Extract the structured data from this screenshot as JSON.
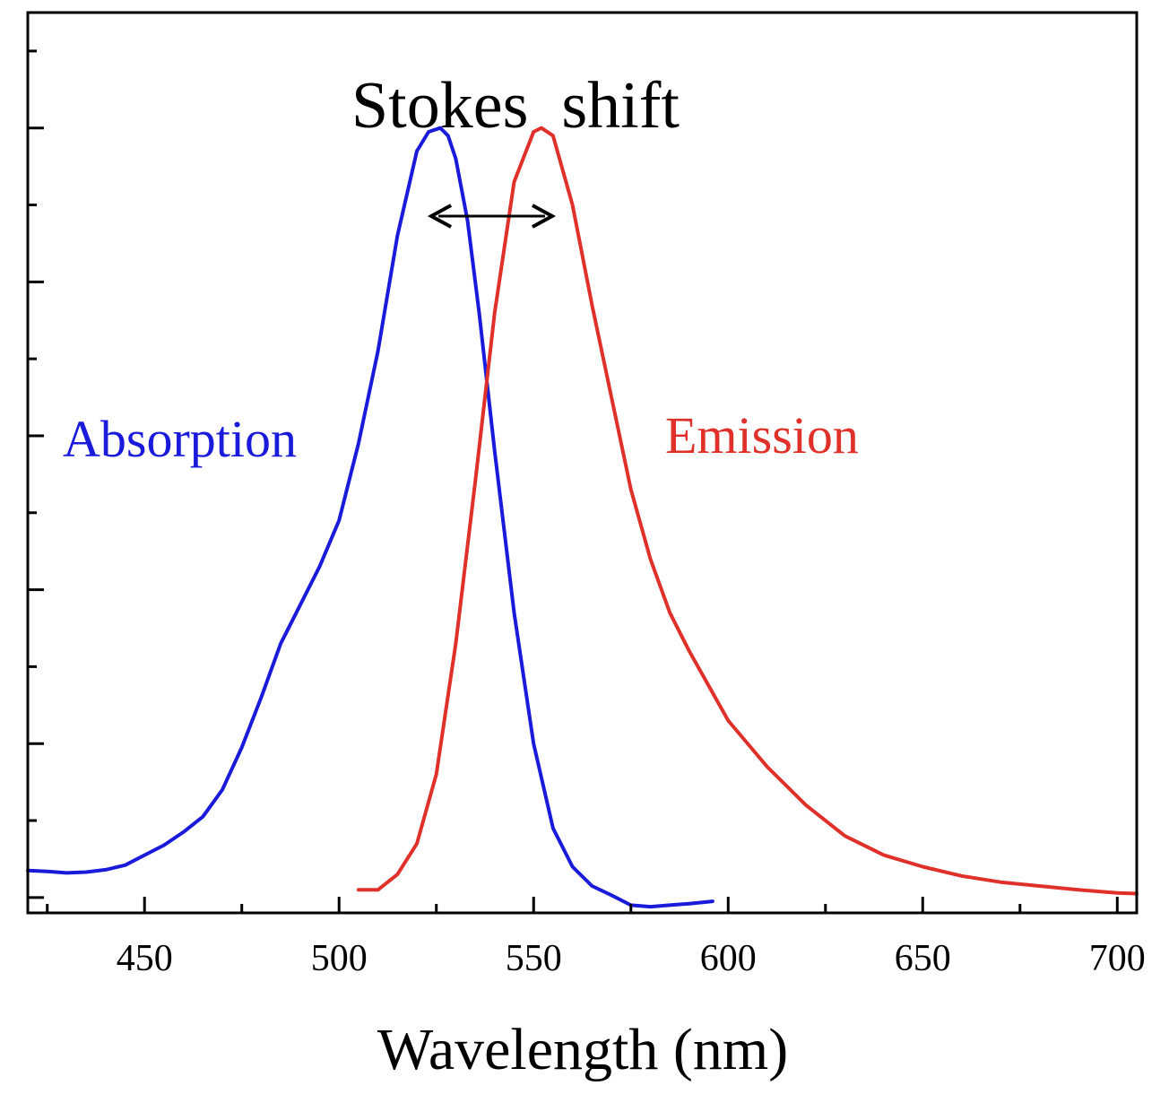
{
  "chart_data": {
    "type": "line",
    "title": "",
    "xlabel": "Wavelength (nm)",
    "ylabel": "",
    "xlim": [
      420,
      705
    ],
    "ylim": [
      -0.02,
      1.15
    ],
    "x_ticks": [
      450,
      500,
      550,
      600,
      650,
      700
    ],
    "x_tick_labels": [
      "450",
      "500",
      "550",
      "600",
      "650",
      "700"
    ],
    "y_tick_labels_shown": false,
    "grid": false,
    "legend": "none (inline labels)",
    "series": [
      {
        "name": "Absorption",
        "color": "#1a1adb",
        "x": [
          420,
          425,
          430,
          435,
          440,
          445,
          450,
          455,
          460,
          465,
          470,
          475,
          480,
          485,
          490,
          495,
          500,
          505,
          510,
          515,
          520,
          523,
          526,
          528,
          530,
          533,
          536,
          540,
          545,
          550,
          555,
          560,
          565,
          570,
          575,
          580,
          585,
          590,
          596
        ],
        "values": [
          0.035,
          0.034,
          0.032,
          0.033,
          0.036,
          0.042,
          0.055,
          0.068,
          0.085,
          0.105,
          0.14,
          0.195,
          0.26,
          0.33,
          0.38,
          0.43,
          0.49,
          0.59,
          0.71,
          0.86,
          0.97,
          0.995,
          1.0,
          0.99,
          0.96,
          0.88,
          0.76,
          0.58,
          0.37,
          0.2,
          0.09,
          0.04,
          0.015,
          0.003,
          -0.01,
          -0.012,
          -0.01,
          -0.008,
          -0.005
        ]
      },
      {
        "name": "Emission",
        "color": "#e0302a",
        "x": [
          505,
          510,
          515,
          520,
          525,
          530,
          535,
          540,
          545,
          550,
          552,
          555,
          560,
          565,
          570,
          575,
          580,
          585,
          590,
          600,
          610,
          620,
          630,
          640,
          650,
          660,
          670,
          680,
          690,
          700,
          705
        ],
        "values": [
          0.01,
          0.01,
          0.03,
          0.07,
          0.16,
          0.33,
          0.54,
          0.76,
          0.93,
          0.995,
          1.0,
          0.99,
          0.9,
          0.77,
          0.65,
          0.53,
          0.44,
          0.37,
          0.32,
          0.23,
          0.17,
          0.12,
          0.08,
          0.055,
          0.04,
          0.028,
          0.02,
          0.015,
          0.01,
          0.006,
          0.005
        ]
      }
    ],
    "annotations": {
      "stokes_shift": {
        "text": "Stokes  shift",
        "arrow_from_x": 526,
        "arrow_to_x": 552
      }
    }
  }
}
